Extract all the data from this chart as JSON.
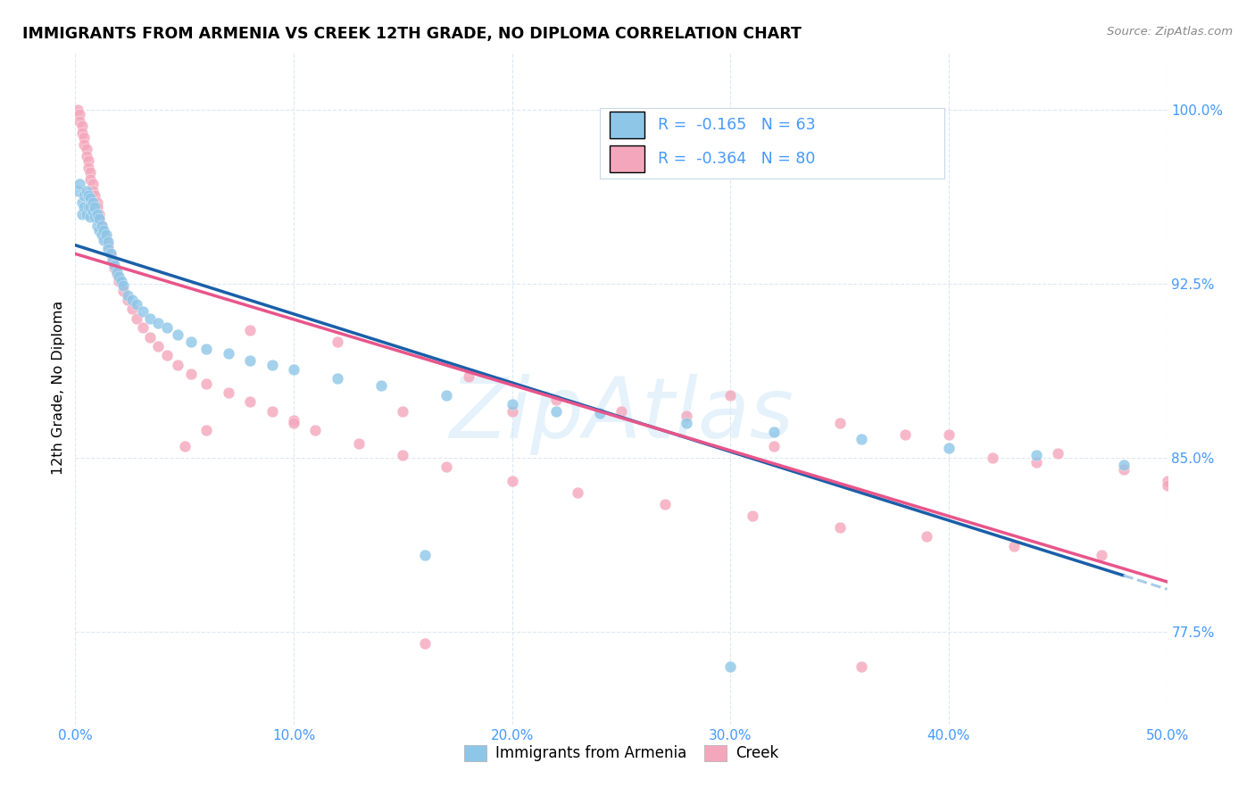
{
  "title": "IMMIGRANTS FROM ARMENIA VS CREEK 12TH GRADE, NO DIPLOMA CORRELATION CHART",
  "source": "Source: ZipAtlas.com",
  "ylabel_label": "12th Grade, No Diploma",
  "legend_label1": "Immigrants from Armenia",
  "legend_label2": "Creek",
  "R1": "-0.165",
  "N1": "63",
  "R2": "-0.364",
  "N2": "80",
  "color_blue": "#8ec6e8",
  "color_pink": "#f4a7bc",
  "color_blue_line": "#1a5fa8",
  "color_pink_line": "#e8558a",
  "color_blue_dash": "#a8cce8",
  "color_axis_label": "#4499ff",
  "watermark_color": "#d0e8f8",
  "xmin": 0.0,
  "xmax": 0.5,
  "ymin": 0.735,
  "ymax": 1.025,
  "x_ticks": [
    0.0,
    0.1,
    0.2,
    0.3,
    0.4,
    0.5
  ],
  "y_ticks": [
    1.0,
    0.925,
    0.85,
    0.775
  ],
  "blue_x": [
    0.001,
    0.002,
    0.003,
    0.003,
    0.004,
    0.004,
    0.005,
    0.005,
    0.006,
    0.006,
    0.007,
    0.007,
    0.007,
    0.008,
    0.008,
    0.009,
    0.009,
    0.01,
    0.01,
    0.011,
    0.011,
    0.012,
    0.012,
    0.013,
    0.013,
    0.014,
    0.015,
    0.015,
    0.016,
    0.017,
    0.018,
    0.019,
    0.02,
    0.021,
    0.022,
    0.024,
    0.026,
    0.028,
    0.031,
    0.034,
    0.038,
    0.042,
    0.047,
    0.053,
    0.06,
    0.07,
    0.08,
    0.09,
    0.1,
    0.12,
    0.14,
    0.17,
    0.2,
    0.24,
    0.28,
    0.32,
    0.36,
    0.4,
    0.44,
    0.48,
    0.22,
    0.16,
    0.3
  ],
  "blue_y": [
    0.965,
    0.968,
    0.96,
    0.955,
    0.963,
    0.958,
    0.965,
    0.955,
    0.963,
    0.958,
    0.962,
    0.958,
    0.954,
    0.96,
    0.956,
    0.958,
    0.954,
    0.955,
    0.95,
    0.953,
    0.948,
    0.95,
    0.946,
    0.948,
    0.944,
    0.946,
    0.943,
    0.94,
    0.938,
    0.935,
    0.933,
    0.93,
    0.928,
    0.926,
    0.924,
    0.92,
    0.918,
    0.916,
    0.913,
    0.91,
    0.908,
    0.906,
    0.903,
    0.9,
    0.897,
    0.895,
    0.892,
    0.89,
    0.888,
    0.884,
    0.881,
    0.877,
    0.873,
    0.869,
    0.865,
    0.861,
    0.858,
    0.854,
    0.851,
    0.847,
    0.87,
    0.808,
    0.76
  ],
  "pink_x": [
    0.001,
    0.002,
    0.002,
    0.003,
    0.003,
    0.004,
    0.004,
    0.005,
    0.005,
    0.006,
    0.006,
    0.007,
    0.007,
    0.008,
    0.008,
    0.009,
    0.01,
    0.01,
    0.011,
    0.011,
    0.012,
    0.013,
    0.014,
    0.015,
    0.016,
    0.017,
    0.018,
    0.019,
    0.02,
    0.022,
    0.024,
    0.026,
    0.028,
    0.031,
    0.034,
    0.038,
    0.042,
    0.047,
    0.053,
    0.06,
    0.07,
    0.08,
    0.09,
    0.1,
    0.11,
    0.13,
    0.15,
    0.17,
    0.2,
    0.23,
    0.27,
    0.31,
    0.35,
    0.39,
    0.43,
    0.47,
    0.5,
    0.12,
    0.18,
    0.25,
    0.3,
    0.38,
    0.44,
    0.08,
    0.15,
    0.22,
    0.35,
    0.05,
    0.1,
    0.2,
    0.28,
    0.4,
    0.45,
    0.5,
    0.06,
    0.16,
    0.32,
    0.42,
    0.36,
    0.48
  ],
  "pink_y": [
    1.0,
    0.998,
    0.995,
    0.993,
    0.99,
    0.988,
    0.985,
    0.983,
    0.98,
    0.978,
    0.975,
    0.973,
    0.97,
    0.968,
    0.965,
    0.963,
    0.96,
    0.958,
    0.955,
    0.953,
    0.95,
    0.947,
    0.944,
    0.941,
    0.938,
    0.935,
    0.932,
    0.929,
    0.926,
    0.922,
    0.918,
    0.914,
    0.91,
    0.906,
    0.902,
    0.898,
    0.894,
    0.89,
    0.886,
    0.882,
    0.878,
    0.874,
    0.87,
    0.866,
    0.862,
    0.856,
    0.851,
    0.846,
    0.84,
    0.835,
    0.83,
    0.825,
    0.82,
    0.816,
    0.812,
    0.808,
    0.84,
    0.9,
    0.885,
    0.87,
    0.877,
    0.86,
    0.848,
    0.905,
    0.87,
    0.875,
    0.865,
    0.855,
    0.865,
    0.87,
    0.868,
    0.86,
    0.852,
    0.838,
    0.862,
    0.77,
    0.855,
    0.85,
    0.76,
    0.845
  ]
}
